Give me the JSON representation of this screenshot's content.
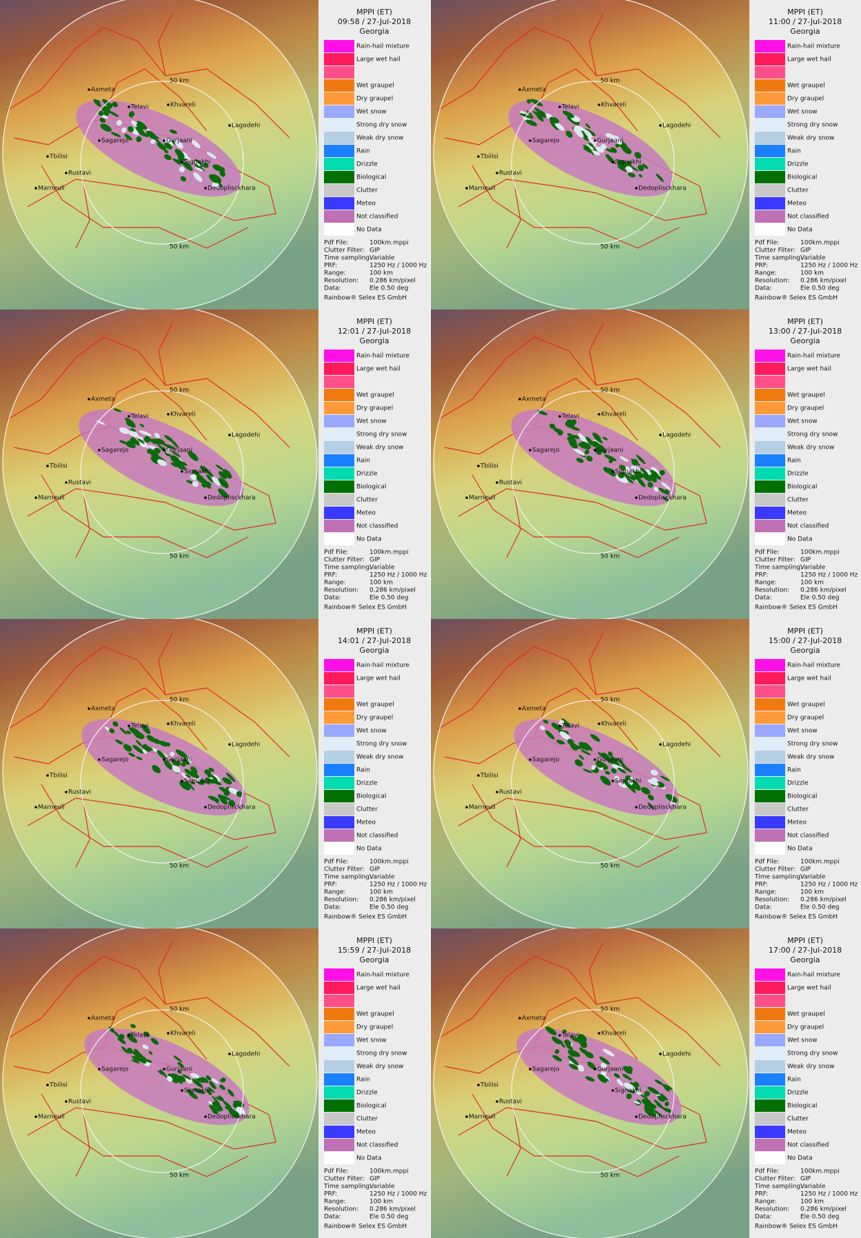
{
  "panels": [
    {
      "title": "MPPI (ET)",
      "time": "09:58 / 27-Jul-2018",
      "region": "Georgia"
    },
    {
      "title": "MPPI (ET)",
      "time": "11:00 / 27-Jul-2018",
      "region": "Georgia"
    },
    {
      "title": "MPPI (ET)",
      "time": "12:01 / 27-Jul-2018",
      "region": "Georgia"
    },
    {
      "title": "MPPI (ET)",
      "time": "13:00 / 27-Jul-2018",
      "region": "Georgia"
    },
    {
      "title": "MPPI (ET)",
      "time": "14:01 / 27-Jul-2018",
      "region": "Georgia"
    },
    {
      "title": "MPPI (ET)",
      "time": "15:00 / 27-Jul-2018",
      "region": "Georgia"
    },
    {
      "title": "MPPI (ET)",
      "time": "15:59 / 27-Jul-2018",
      "region": "Georgia"
    },
    {
      "title": "MPPI (ET)",
      "time": "17:00 / 27-Jul-2018",
      "region": "Georgia"
    }
  ],
  "legend": [
    {
      "label": "Rain-hail mixture",
      "color": "#ff10e8"
    },
    {
      "label": "Large wet hail",
      "color": "#ff1a5e"
    },
    {
      "color": "#ff4f8a"
    },
    {
      "label": "Wet graupel",
      "color": "#f07a10"
    },
    {
      "label": "Dry graupel",
      "color": "#ff9a3a"
    },
    {
      "label": "Wet snow",
      "color": "#9aa8ff"
    },
    {
      "label": "Strong dry snow",
      "color": "#ddeefa"
    },
    {
      "label": "Weak dry snow",
      "color": "#b4cfe4"
    },
    {
      "label": "Rain",
      "color": "#1a80ff"
    },
    {
      "label": "Drizzle",
      "color": "#00dcb0"
    },
    {
      "label": "Biological",
      "color": "#007000"
    },
    {
      "label": "Clutter",
      "color": "#c8c8c8"
    },
    {
      "label": "Meteo",
      "color": "#3a3aff"
    },
    {
      "label": "Not classified",
      "color": "#c070b4"
    },
    {
      "label": "No Data",
      "color": "#ffffff"
    }
  ],
  "info": [
    [
      "Pdf File:",
      "100km.mppi"
    ],
    [
      "Clutter Filter:",
      "GIP"
    ],
    [
      "Time sampling:",
      "Variable"
    ],
    [
      "PRF:",
      "1250 Hz / 1000 Hz"
    ],
    [
      "Range:",
      "100 km"
    ],
    [
      "Resolution:",
      "0.286 km/pixel"
    ],
    [
      "Data:",
      "Ele 0.50 deg"
    ]
  ],
  "footer": "Rainbow® Selex ES GmbH",
  "places": [
    "Axmeta",
    "Telavi",
    "Khvareli",
    "Lagodehi",
    "Sagarejo",
    "Gurjaani",
    "Signakhi",
    "Tbilisi",
    "Rustavi",
    "Marneuli",
    "Dedoplisckhara"
  ],
  "range_label": "50 km"
}
